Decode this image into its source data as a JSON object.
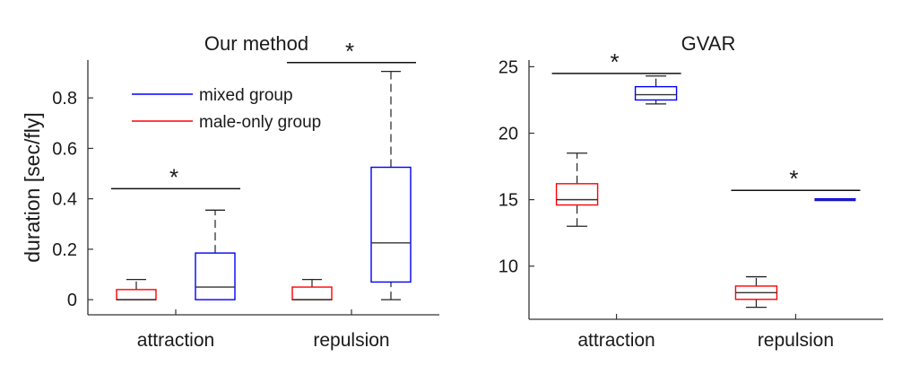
{
  "chart_data": [
    {
      "type": "box",
      "title": "Our method",
      "ylabel": "duration [sec/fly]",
      "xlabel": "",
      "categories": [
        "attraction",
        "repulsion"
      ],
      "ylim": [
        -0.06,
        0.95
      ],
      "yticks": [
        0,
        0.2,
        0.4,
        0.6,
        0.8
      ],
      "ytick_labels": [
        "0",
        "0.2",
        "0.4",
        "0.6",
        "0.8"
      ],
      "legend": {
        "placement": "top-center",
        "entries": [
          {
            "label": "mixed group",
            "color": "#0000ff"
          },
          {
            "label": "male-only group",
            "color": "#ff0000"
          }
        ]
      },
      "series": [
        {
          "name": "male-only group",
          "color": "#ff0000",
          "boxes": [
            {
              "min": 0,
              "q1": 0,
              "median": 0,
              "q3": 0.04,
              "max": 0.08
            },
            {
              "min": 0,
              "q1": 0,
              "median": 0,
              "q3": 0.05,
              "max": 0.08
            }
          ]
        },
        {
          "name": "mixed group",
          "color": "#0000ff",
          "boxes": [
            {
              "min": 0,
              "q1": 0,
              "median": 0.05,
              "q3": 0.185,
              "max": 0.355
            },
            {
              "min": 0,
              "q1": 0.07,
              "median": 0.225,
              "q3": 0.525,
              "max": 0.905
            }
          ]
        }
      ],
      "significance": [
        {
          "category": "attraction",
          "label": "*",
          "y": 0.44
        },
        {
          "category": "repulsion",
          "label": "*",
          "y": 0.94
        }
      ]
    },
    {
      "type": "box",
      "title": "GVAR",
      "ylabel": "",
      "xlabel": "",
      "categories": [
        "attraction",
        "repulsion"
      ],
      "ylim": [
        6,
        25.5
      ],
      "yticks": [
        10,
        15,
        20,
        25
      ],
      "ytick_labels": [
        "10",
        "15",
        "20",
        "25"
      ],
      "series": [
        {
          "name": "male-only group",
          "color": "#ff0000",
          "boxes": [
            {
              "min": 13,
              "q1": 14.6,
              "median": 15,
              "q3": 16.2,
              "max": 18.5
            },
            {
              "min": 6.9,
              "q1": 7.5,
              "median": 8,
              "q3": 8.5,
              "max": 9.2
            }
          ]
        },
        {
          "name": "mixed group",
          "color": "#0000ff",
          "boxes": [
            {
              "min": 22.2,
              "q1": 22.5,
              "median": 22.9,
              "q3": 23.5,
              "max": 24.3
            },
            {
              "min": 15,
              "q1": 15,
              "median": 15,
              "q3": 15,
              "max": 15
            }
          ]
        }
      ],
      "significance": [
        {
          "category": "attraction",
          "label": "*",
          "y": 24.5
        },
        {
          "category": "repulsion",
          "label": "*",
          "y": 15.7
        }
      ]
    }
  ]
}
